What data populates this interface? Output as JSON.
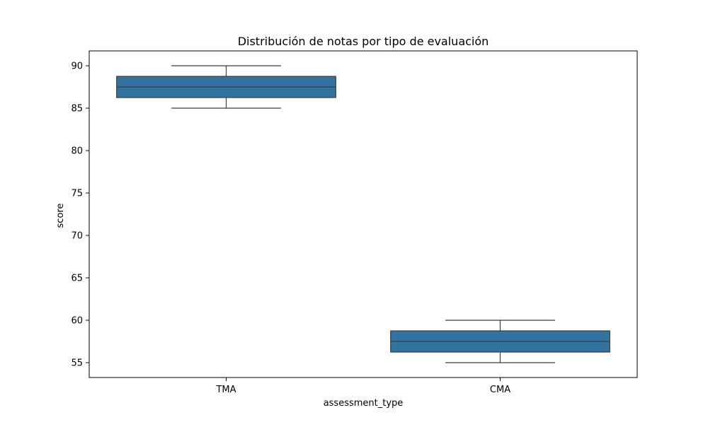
{
  "chart_data": {
    "type": "box",
    "title": "Distribución de notas por tipo de evaluación",
    "xlabel": "assessment_type",
    "ylabel": "score",
    "categories": [
      "TMA",
      "CMA"
    ],
    "boxes": [
      {
        "category": "TMA",
        "whisker_low": 85,
        "q1": 86.25,
        "median": 87.5,
        "q3": 88.75,
        "whisker_high": 90
      },
      {
        "category": "CMA",
        "whisker_low": 55,
        "q1": 56.25,
        "median": 57.5,
        "q3": 58.75,
        "whisker_high": 60
      }
    ],
    "ylim": [
      53.25,
      91.75
    ],
    "yticks": [
      55,
      60,
      65,
      70,
      75,
      80,
      85,
      90
    ],
    "grid": false,
    "box_color": "#3274a1",
    "edge_color": "#3d3d3d"
  }
}
